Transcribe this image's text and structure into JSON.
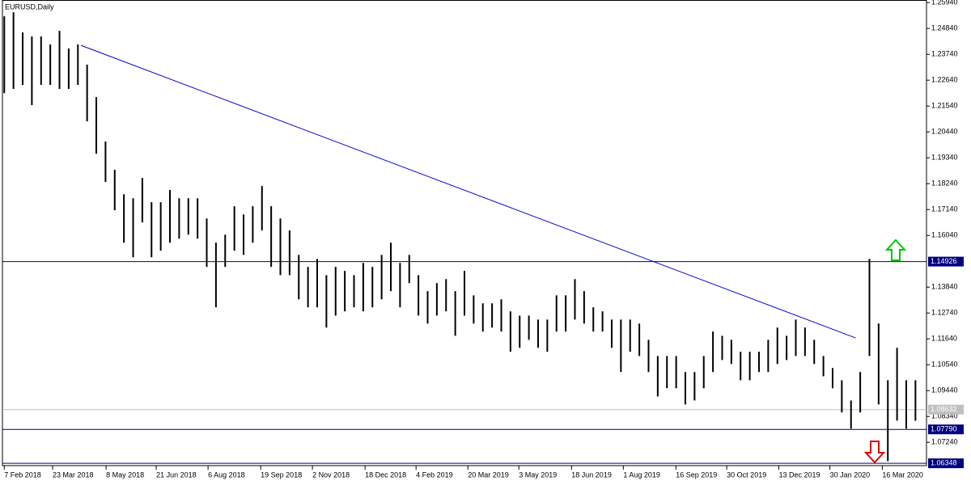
{
  "chart_data": {
    "type": "ohlc-range",
    "title": "EURUSD,Daily",
    "x": [
      0,
      1,
      2,
      3,
      4,
      5,
      6,
      7,
      8,
      9,
      10,
      11,
      12,
      13,
      14,
      15,
      16,
      17,
      18,
      19,
      20,
      21,
      22,
      23,
      24,
      25,
      26,
      27,
      28,
      29,
      30,
      31,
      32,
      33,
      34,
      35,
      36,
      37,
      38,
      39,
      40,
      41,
      42,
      43,
      44,
      45,
      46,
      47,
      48,
      49,
      50,
      51,
      52,
      53,
      54,
      55,
      56,
      57,
      58,
      59,
      60,
      61,
      62,
      63,
      64,
      65,
      66,
      67,
      68,
      69,
      70,
      71,
      72,
      73,
      74,
      75,
      76,
      77,
      78,
      79,
      80,
      81,
      82,
      83,
      84,
      85,
      86,
      87,
      88,
      89,
      90,
      91,
      92,
      93,
      94,
      95,
      96,
      97,
      98,
      99
    ],
    "high": [
      1.2536,
      1.2553,
      1.2467,
      1.245,
      1.245,
      1.2416,
      1.2474,
      1.2399,
      1.2416,
      1.233,
      1.2192,
      1.2003,
      1.1883,
      1.1779,
      1.1762,
      1.1848,
      1.1745,
      1.1745,
      1.1797,
      1.1762,
      1.1762,
      1.1762,
      1.1676,
      1.1573,
      1.1607,
      1.1728,
      1.1693,
      1.1728,
      1.1814,
      1.1728,
      1.1676,
      1.1625,
      1.1521,
      1.147,
      1.1504,
      1.1435,
      1.147,
      1.1453,
      1.1435,
      1.1487,
      1.147,
      1.1521,
      1.1573,
      1.1487,
      1.1521,
      1.1435,
      1.1367,
      1.1401,
      1.1418,
      1.1367,
      1.1453,
      1.1349,
      1.1315,
      1.1315,
      1.1332,
      1.1281,
      1.1263,
      1.1263,
      1.1246,
      1.1246,
      1.1349,
      1.1349,
      1.1418,
      1.1367,
      1.1298,
      1.1281,
      1.1246,
      1.1246,
      1.1246,
      1.1229,
      1.116,
      1.1091,
      1.1091,
      1.1091,
      1.1023,
      1.1023,
      1.1091,
      1.1195,
      1.1177,
      1.116,
      1.1109,
      1.1109,
      1.1109,
      1.116,
      1.1212,
      1.1177,
      1.1246,
      1.1212,
      1.116,
      1.1091,
      1.104,
      1.0988,
      1.0902,
      1.1023,
      1.1504,
      1.1229,
      1.0988,
      1.1126,
      1.0988,
      1.0988
    ],
    "low": [
      1.2209,
      1.2227,
      1.2244,
      1.2158,
      1.2244,
      1.2244,
      1.2227,
      1.2227,
      1.2244,
      1.2089,
      1.1951,
      1.1831,
      1.1711,
      1.1573,
      1.1511,
      1.1659,
      1.1511,
      1.1539,
      1.1573,
      1.159,
      1.1607,
      1.159,
      1.147,
      1.1298,
      1.147,
      1.1539,
      1.1521,
      1.1573,
      1.1625,
      1.147,
      1.1435,
      1.1435,
      1.1332,
      1.1298,
      1.1298,
      1.1212,
      1.1263,
      1.1281,
      1.1298,
      1.1281,
      1.1298,
      1.1332,
      1.1367,
      1.1298,
      1.1401,
      1.1263,
      1.1229,
      1.1263,
      1.1281,
      1.1177,
      1.1263,
      1.1229,
      1.1195,
      1.1212,
      1.1195,
      1.1109,
      1.1126,
      1.116,
      1.1126,
      1.1109,
      1.1195,
      1.1195,
      1.1246,
      1.1229,
      1.1195,
      1.1195,
      1.1126,
      1.1023,
      1.1109,
      1.1091,
      1.1023,
      1.0919,
      1.0954,
      1.0954,
      1.0885,
      1.0902,
      1.0954,
      1.1023,
      1.1074,
      1.1057,
      1.0988,
      1.0988,
      1.1023,
      1.1023,
      1.1057,
      1.1074,
      1.1091,
      1.1091,
      1.1057,
      1.1005,
      1.0954,
      1.0851,
      1.0782,
      1.0851,
      1.1091,
      1.0885,
      1.0644,
      1.0816,
      1.0782,
      1.0816
    ],
    "color": "#000000",
    "xlim": [
      -0.2,
      100.2
    ],
    "ylim": [
      1.0625,
      1.2605
    ],
    "xticks": [
      {
        "value": 0,
        "label": "7 Feb 2018"
      },
      {
        "value": 5.25,
        "label": "23 Mar 2018"
      },
      {
        "value": 11.06,
        "label": "8 May 2018"
      },
      {
        "value": 16.51,
        "label": "21 Jun 2018"
      },
      {
        "value": 22.14,
        "label": "6 Aug 2018"
      },
      {
        "value": 27.86,
        "label": "19 Sep 2018"
      },
      {
        "value": 33.48,
        "label": "2 Nov 2018"
      },
      {
        "value": 39.2,
        "label": "18 Dec 2018"
      },
      {
        "value": 44.74,
        "label": "4 Feb 2019"
      },
      {
        "value": 50.37,
        "label": "20 Mar 2019"
      },
      {
        "value": 55.91,
        "label": "3 May 2019"
      },
      {
        "value": 61.63,
        "label": "18 Jun 2019"
      },
      {
        "value": 67.26,
        "label": "1 Aug 2019"
      },
      {
        "value": 72.97,
        "label": "16 Sep 2019"
      },
      {
        "value": 78.5,
        "label": "30 Oct 2019"
      },
      {
        "value": 84.15,
        "label": "13 Dec 2019"
      },
      {
        "value": 89.7,
        "label": "30 Jan 2020"
      },
      {
        "value": 95.4,
        "label": "16 Mar 2020"
      }
    ],
    "yticks": [
      {
        "value": 1.2594,
        "label": "1.25940"
      },
      {
        "value": 1.2484,
        "label": "1.24840"
      },
      {
        "value": 1.2374,
        "label": "1.23740"
      },
      {
        "value": 1.2264,
        "label": "1.22640"
      },
      {
        "value": 1.2154,
        "label": "1.21540"
      },
      {
        "value": 1.2044,
        "label": "1.20440"
      },
      {
        "value": 1.1934,
        "label": "1.19340"
      },
      {
        "value": 1.1824,
        "label": "1.18240"
      },
      {
        "value": 1.1714,
        "label": "1.17140"
      },
      {
        "value": 1.1604,
        "label": "1.16040"
      },
      {
        "value": 1.1384,
        "label": "1.13840"
      },
      {
        "value": 1.1274,
        "label": "1.12740"
      },
      {
        "value": 1.1164,
        "label": "1.11640"
      },
      {
        "value": 1.1054,
        "label": "1.10540"
      },
      {
        "value": 1.0944,
        "label": "1.09440"
      },
      {
        "value": 1.0834,
        "label": "1.08340"
      },
      {
        "value": 1.0724,
        "label": "1.07240"
      }
    ],
    "levels": [
      {
        "value": 1.14926,
        "label": "1.14926",
        "color": "#000080"
      },
      {
        "value": 1.0779,
        "label": "1.07790",
        "color": "#000080"
      },
      {
        "value": 1.06348,
        "label": "1.06348",
        "color": "#000080"
      },
      {
        "value": 1.08632,
        "label": "1.08632",
        "color": "#c0c0c0"
      }
    ],
    "trendline": {
      "x": [
        8.33,
        92.5
      ],
      "y": [
        1.2412,
        1.1168
      ],
      "color": "#0000cc"
    }
  }
}
